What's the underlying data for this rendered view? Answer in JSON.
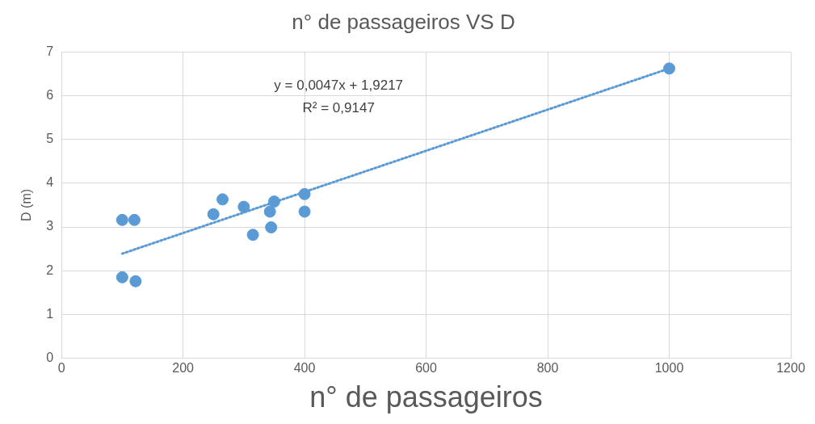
{
  "chart_data": {
    "type": "scatter",
    "title": "n° de passageiros VS D",
    "xlabel": "n° de passageiros",
    "ylabel": "D (m)",
    "xlim": [
      0,
      1200
    ],
    "xticks": [
      0,
      200,
      400,
      600,
      800,
      1000,
      1200
    ],
    "ylim": [
      0,
      7
    ],
    "yticks": [
      0,
      1,
      2,
      3,
      4,
      5,
      6,
      7
    ],
    "grid": true,
    "legend": false,
    "marker": "circle",
    "series": [
      {
        "color": "#5b9bd5",
        "x": [
          100,
          120,
          100,
          122,
          250,
          265,
          300,
          315,
          343,
          345,
          350,
          400,
          400,
          1000
        ],
        "values": [
          3.16,
          3.16,
          1.85,
          1.76,
          3.29,
          3.63,
          3.46,
          2.82,
          3.35,
          2.99,
          3.58,
          3.75,
          3.35,
          6.62
        ]
      },
      {
        "type": "line",
        "color": "#5b9bd5",
        "line_style": "dotted",
        "marker": "none",
        "x": [
          100,
          1000
        ],
        "values": [
          2.39,
          6.62
        ]
      }
    ],
    "annotations": [
      "y = 0,0047x + 1,9217",
      "R² = 0,9147"
    ]
  }
}
